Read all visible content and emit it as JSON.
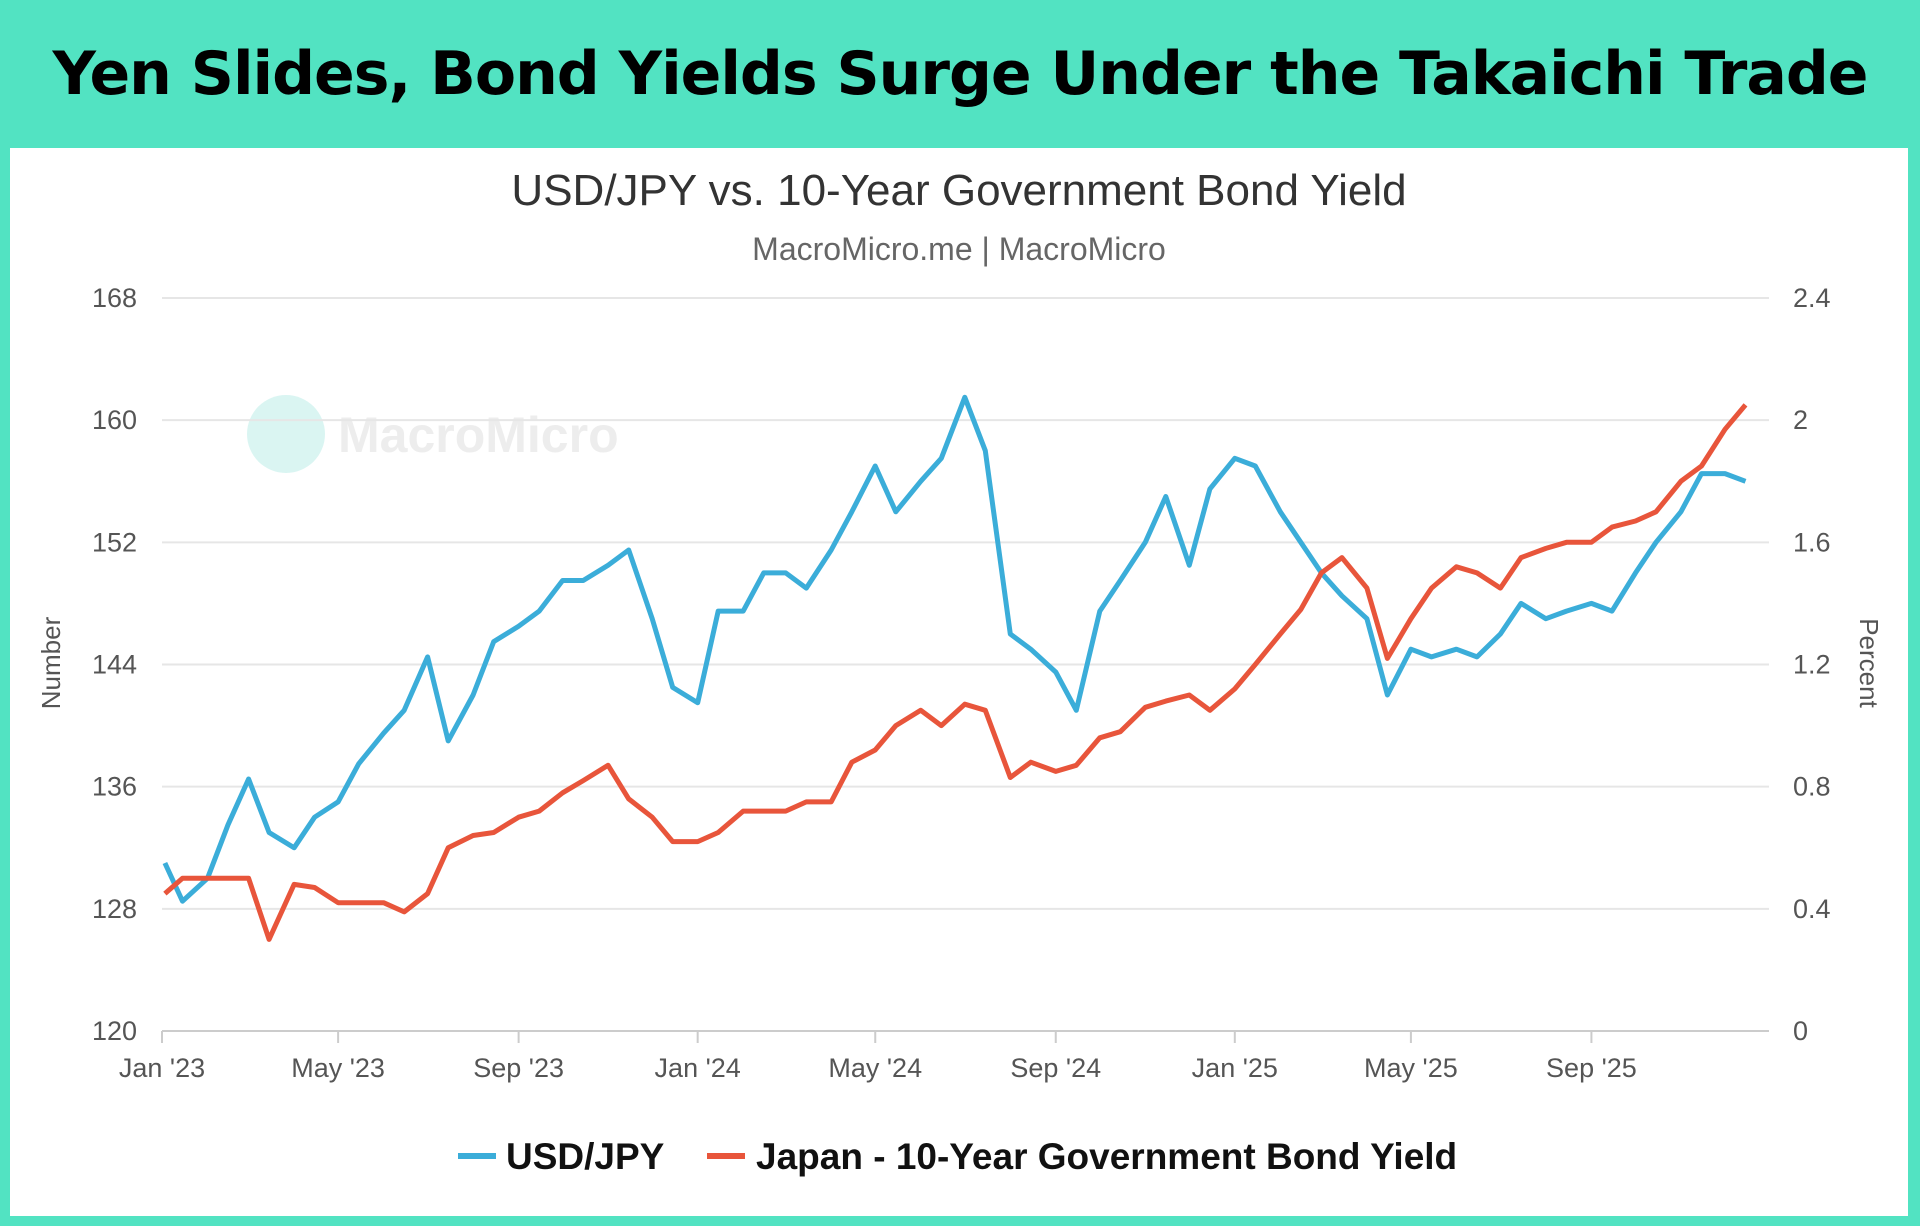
{
  "header": {
    "title": "Yen Slides, Bond Yields Surge Under the Takaichi Trade"
  },
  "chart_data": {
    "type": "line",
    "title": "USD/JPY vs. 10-Year Government Bond Yield",
    "subtitle": "MacroMicro.me | MacroMicro",
    "watermark": "MacroMicro",
    "y_left": {
      "label": "Number",
      "range": [
        120,
        168
      ],
      "ticks": [
        "168",
        "160",
        "152",
        "144",
        "136",
        "128",
        "120"
      ]
    },
    "y_right": {
      "label": "Percent",
      "range": [
        0,
        2.4
      ],
      "ticks": [
        "2.4",
        "2",
        "1.6",
        "1.2",
        "0.8",
        "0.4",
        "0"
      ]
    },
    "x_ticks": [
      {
        "date": "2023-01-01",
        "label": "Jan '23"
      },
      {
        "date": "2023-05-01",
        "label": "May '23"
      },
      {
        "date": "2023-09-01",
        "label": "Sep '23"
      },
      {
        "date": "2024-01-01",
        "label": "Jan '24"
      },
      {
        "date": "2024-05-01",
        "label": "May '24"
      },
      {
        "date": "2024-09-01",
        "label": "Sep '24"
      },
      {
        "date": "2025-01-01",
        "label": "Jan '25"
      },
      {
        "date": "2025-05-01",
        "label": "May '25"
      },
      {
        "date": "2025-09-01",
        "label": "Sep '25"
      }
    ],
    "x_range": [
      "2023-01-01",
      "2025-12-31"
    ],
    "grid": true,
    "legend_position": "bottom",
    "x": [
      "2023-01-03",
      "2023-01-15",
      "2023-02-01",
      "2023-02-15",
      "2023-03-01",
      "2023-03-15",
      "2023-04-01",
      "2023-04-15",
      "2023-05-01",
      "2023-05-15",
      "2023-06-01",
      "2023-06-15",
      "2023-07-01",
      "2023-07-15",
      "2023-08-01",
      "2023-08-15",
      "2023-09-01",
      "2023-09-15",
      "2023-10-01",
      "2023-10-15",
      "2023-11-01",
      "2023-11-15",
      "2023-12-01",
      "2023-12-15",
      "2024-01-01",
      "2024-01-15",
      "2024-02-01",
      "2024-02-15",
      "2024-03-01",
      "2024-03-15",
      "2024-04-01",
      "2024-04-15",
      "2024-05-01",
      "2024-05-15",
      "2024-06-01",
      "2024-06-15",
      "2024-07-01",
      "2024-07-15",
      "2024-08-01",
      "2024-08-15",
      "2024-09-01",
      "2024-09-15",
      "2024-10-01",
      "2024-10-15",
      "2024-11-01",
      "2024-11-15",
      "2024-12-01",
      "2024-12-15",
      "2025-01-01",
      "2025-01-15",
      "2025-02-01",
      "2025-02-15",
      "2025-03-01",
      "2025-03-15",
      "2025-04-01",
      "2025-04-15",
      "2025-05-01",
      "2025-05-15",
      "2025-06-01",
      "2025-06-15",
      "2025-07-01",
      "2025-07-15",
      "2025-08-01",
      "2025-08-15",
      "2025-09-01",
      "2025-09-15",
      "2025-10-01",
      "2025-10-15",
      "2025-11-01",
      "2025-11-15",
      "2025-12-01",
      "2025-12-15"
    ],
    "series": [
      {
        "name": "USD/JPY",
        "axis": "left",
        "color": "#3badd9",
        "values": [
          131,
          128.5,
          130,
          133.5,
          136.5,
          133,
          132,
          134,
          135,
          137.5,
          139.5,
          141,
          144.5,
          139,
          142,
          145.5,
          146.5,
          147.5,
          149.5,
          149.5,
          150.5,
          151.5,
          147,
          142.5,
          141.5,
          147.5,
          147.5,
          150,
          150,
          149,
          151.5,
          154,
          157,
          154,
          156,
          157.5,
          161.5,
          158,
          146,
          145,
          143.5,
          141,
          147.5,
          149.5,
          152,
          155,
          150.5,
          155.5,
          157.5,
          157,
          154,
          152,
          150,
          148.5,
          147,
          142,
          145,
          144.5,
          145,
          144.5,
          146,
          148,
          147,
          147.5,
          148,
          147.5,
          150,
          152,
          154,
          156.5,
          156.5,
          156
        ]
      },
      {
        "name": "Japan - 10-Year Government Bond Yield",
        "axis": "right",
        "color": "#e8553b",
        "values": [
          0.45,
          0.5,
          0.5,
          0.5,
          0.5,
          0.3,
          0.48,
          0.47,
          0.42,
          0.42,
          0.42,
          0.39,
          0.45,
          0.6,
          0.64,
          0.65,
          0.7,
          0.72,
          0.78,
          0.82,
          0.87,
          0.76,
          0.7,
          0.62,
          0.62,
          0.65,
          0.72,
          0.72,
          0.72,
          0.75,
          0.75,
          0.88,
          0.92,
          1.0,
          1.05,
          1.0,
          1.07,
          1.05,
          0.83,
          0.88,
          0.85,
          0.87,
          0.96,
          0.98,
          1.06,
          1.08,
          1.1,
          1.05,
          1.12,
          1.2,
          1.3,
          1.38,
          1.5,
          1.55,
          1.45,
          1.22,
          1.35,
          1.45,
          1.52,
          1.5,
          1.45,
          1.55,
          1.58,
          1.6,
          1.6,
          1.65,
          1.67,
          1.7,
          1.8,
          1.85,
          1.97,
          2.05
        ]
      }
    ]
  }
}
